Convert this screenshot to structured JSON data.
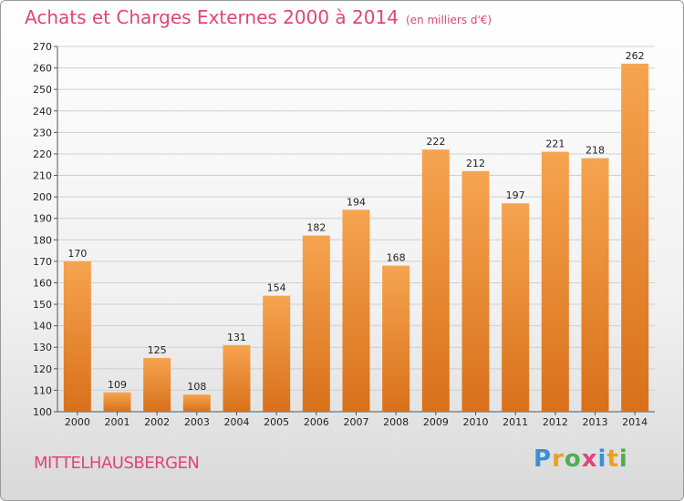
{
  "title": "Achats et Charges Externes 2000 à 2014",
  "unit": "(en milliers d'€)",
  "town": "MITTELHAUSBERGEN",
  "logo": {
    "letters": [
      "P",
      "r",
      "o",
      "x",
      "i",
      "t",
      "i"
    ],
    "colors": [
      "#3a8fd6",
      "#e8a21e",
      "#4caf50",
      "#e0457a",
      "#3a8fd6",
      "#e8a21e",
      "#4caf50"
    ]
  },
  "colors": {
    "bar_top": "#f6a450",
    "bar_bottom": "#d9701a",
    "grid": "#cfcfcf",
    "title": "#e0457a"
  },
  "chart_data": {
    "type": "bar",
    "title": "Achats et Charges Externes 2000 à 2014",
    "xlabel": "",
    "ylabel": "",
    "ylim": [
      100,
      270
    ],
    "ytick_step": 10,
    "grid": true,
    "categories": [
      "2000",
      "2001",
      "2002",
      "2003",
      "2004",
      "2005",
      "2006",
      "2007",
      "2008",
      "2009",
      "2010",
      "2011",
      "2012",
      "2013",
      "2014"
    ],
    "values": [
      170,
      109,
      125,
      108,
      131,
      154,
      182,
      194,
      168,
      222,
      212,
      197,
      221,
      218,
      262
    ]
  }
}
